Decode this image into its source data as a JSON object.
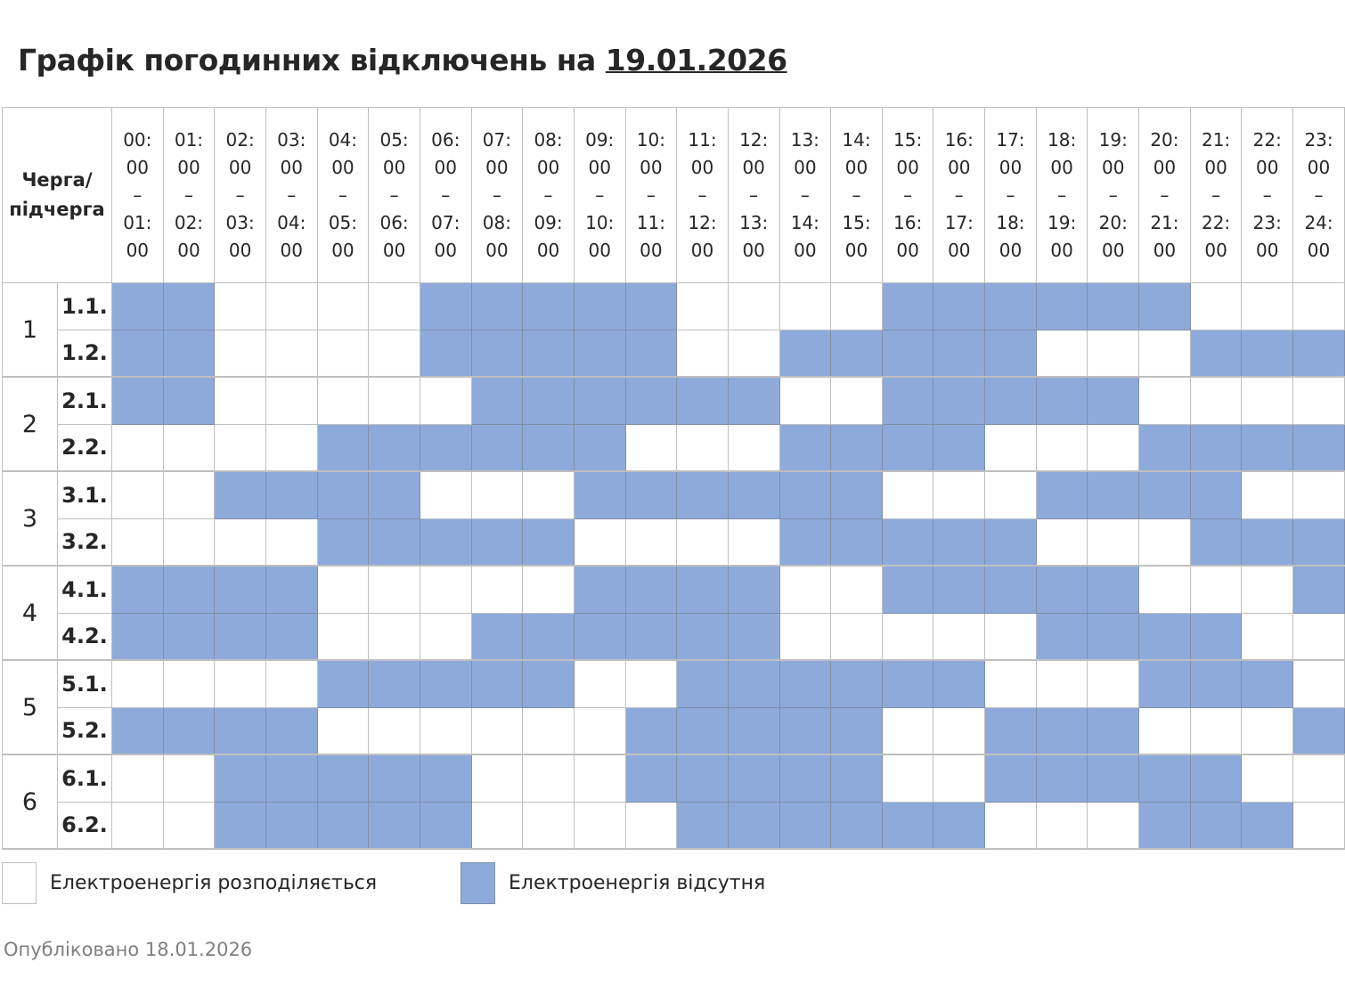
{
  "title": {
    "prefix": "Графік погодинних відключень на",
    "date": "19.01.2026"
  },
  "header": {
    "corner_line1": "Черга/",
    "corner_line2": "підчерга",
    "dash": "–"
  },
  "colors": {
    "off": "#8eaadb",
    "on": "#ffffff"
  },
  "chart_data": {
    "type": "heatmap",
    "title": "Графік погодинних відключень на 19.01.2026",
    "columns": [
      {
        "from": "00:",
        "from2": "00",
        "to": "01:",
        "to2": "00"
      },
      {
        "from": "01:",
        "from2": "00",
        "to": "02:",
        "to2": "00"
      },
      {
        "from": "02:",
        "from2": "00",
        "to": "03:",
        "to2": "00"
      },
      {
        "from": "03:",
        "from2": "00",
        "to": "04:",
        "to2": "00"
      },
      {
        "from": "04:",
        "from2": "00",
        "to": "05:",
        "to2": "00"
      },
      {
        "from": "05:",
        "from2": "00",
        "to": "06:",
        "to2": "00"
      },
      {
        "from": "06:",
        "from2": "00",
        "to": "07:",
        "to2": "00"
      },
      {
        "from": "07:",
        "from2": "00",
        "to": "08:",
        "to2": "00"
      },
      {
        "from": "08:",
        "from2": "00",
        "to": "09:",
        "to2": "00"
      },
      {
        "from": "09:",
        "from2": "00",
        "to": "10:",
        "to2": "00"
      },
      {
        "from": "10:",
        "from2": "00",
        "to": "11:",
        "to2": "00"
      },
      {
        "from": "11:",
        "from2": "00",
        "to": "12:",
        "to2": "00"
      },
      {
        "from": "12:",
        "from2": "00",
        "to": "13:",
        "to2": "00"
      },
      {
        "from": "13:",
        "from2": "00",
        "to": "14:",
        "to2": "00"
      },
      {
        "from": "14:",
        "from2": "00",
        "to": "15:",
        "to2": "00"
      },
      {
        "from": "15:",
        "from2": "00",
        "to": "16:",
        "to2": "00"
      },
      {
        "from": "16:",
        "from2": "00",
        "to": "17:",
        "to2": "00"
      },
      {
        "from": "17:",
        "from2": "00",
        "to": "18:",
        "to2": "00"
      },
      {
        "from": "18:",
        "from2": "00",
        "to": "19:",
        "to2": "00"
      },
      {
        "from": "19:",
        "from2": "00",
        "to": "20:",
        "to2": "00"
      },
      {
        "from": "20:",
        "from2": "00",
        "to": "21:",
        "to2": "00"
      },
      {
        "from": "21:",
        "from2": "00",
        "to": "22:",
        "to2": "00"
      },
      {
        "from": "22:",
        "from2": "00",
        "to": "23:",
        "to2": "00"
      },
      {
        "from": "23:",
        "from2": "00",
        "to": "24:",
        "to2": "00"
      }
    ],
    "legend": {
      "on": "Електроенергія розподіляється",
      "off": "Електроенергія відсутня"
    },
    "groups": [
      {
        "queue": "1",
        "rows": [
          {
            "label": "1.1.",
            "off": "110000111110000111111000"
          },
          {
            "label": "1.2.",
            "off": "110000111110011111000111"
          }
        ]
      },
      {
        "queue": "2",
        "rows": [
          {
            "label": "2.1.",
            "off": "110000011111100111110000"
          },
          {
            "label": "2.2.",
            "off": "000011111100011110001111"
          }
        ]
      },
      {
        "queue": "3",
        "rows": [
          {
            "label": "3.1.",
            "off": "001111000111111000111100"
          },
          {
            "label": "3.2.",
            "off": "000011111000011111000111"
          }
        ]
      },
      {
        "queue": "4",
        "rows": [
          {
            "label": "4.1.",
            "off": "111100000111100111110001"
          },
          {
            "label": "4.2.",
            "off": "111100011111100000111100"
          }
        ]
      },
      {
        "queue": "5",
        "rows": [
          {
            "label": "5.1.",
            "off": "000011111001111110001110"
          },
          {
            "label": "5.2.",
            "off": "111100000011111001110001"
          }
        ]
      },
      {
        "queue": "6",
        "rows": [
          {
            "label": "6.1.",
            "off": "001111100011111001111100"
          },
          {
            "label": "6.2.",
            "off": "001111100001111110001110"
          }
        ]
      }
    ]
  },
  "footer": {
    "published": "Опубліковано 18.01.2026"
  }
}
